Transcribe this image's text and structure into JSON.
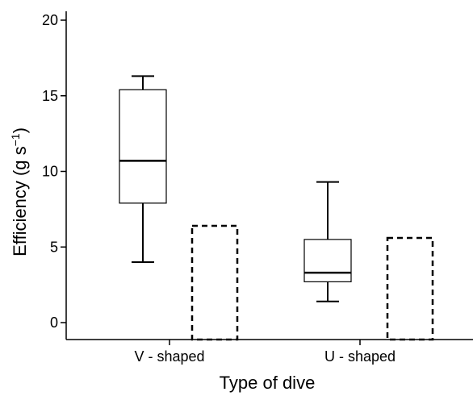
{
  "chart_data": {
    "type": "box",
    "xlabel": "Type of dive",
    "ylabel": "Efficiency (g s",
    "ylabel_sup": "−1",
    "ylabel_close": ")",
    "ylim": [
      -1,
      21
    ],
    "yticks": [
      0,
      5,
      10,
      15,
      20
    ],
    "categories": [
      "V - shaped",
      "U - shaped"
    ],
    "boxes": [
      {
        "category": "V - shaped",
        "whisker_low": 4.0,
        "q1": 7.9,
        "median": 10.7,
        "q3": 15.4,
        "whisker_high": 16.3
      },
      {
        "category": "U - shaped",
        "whisker_low": 1.4,
        "q1": 2.7,
        "median": 3.3,
        "q3": 5.5,
        "whisker_high": 9.3
      }
    ],
    "bars": [
      {
        "category": "V - shaped",
        "value": 6.4,
        "style": "dashed"
      },
      {
        "category": "U - shaped",
        "value": 5.6,
        "style": "dashed"
      }
    ],
    "grid": false
  }
}
